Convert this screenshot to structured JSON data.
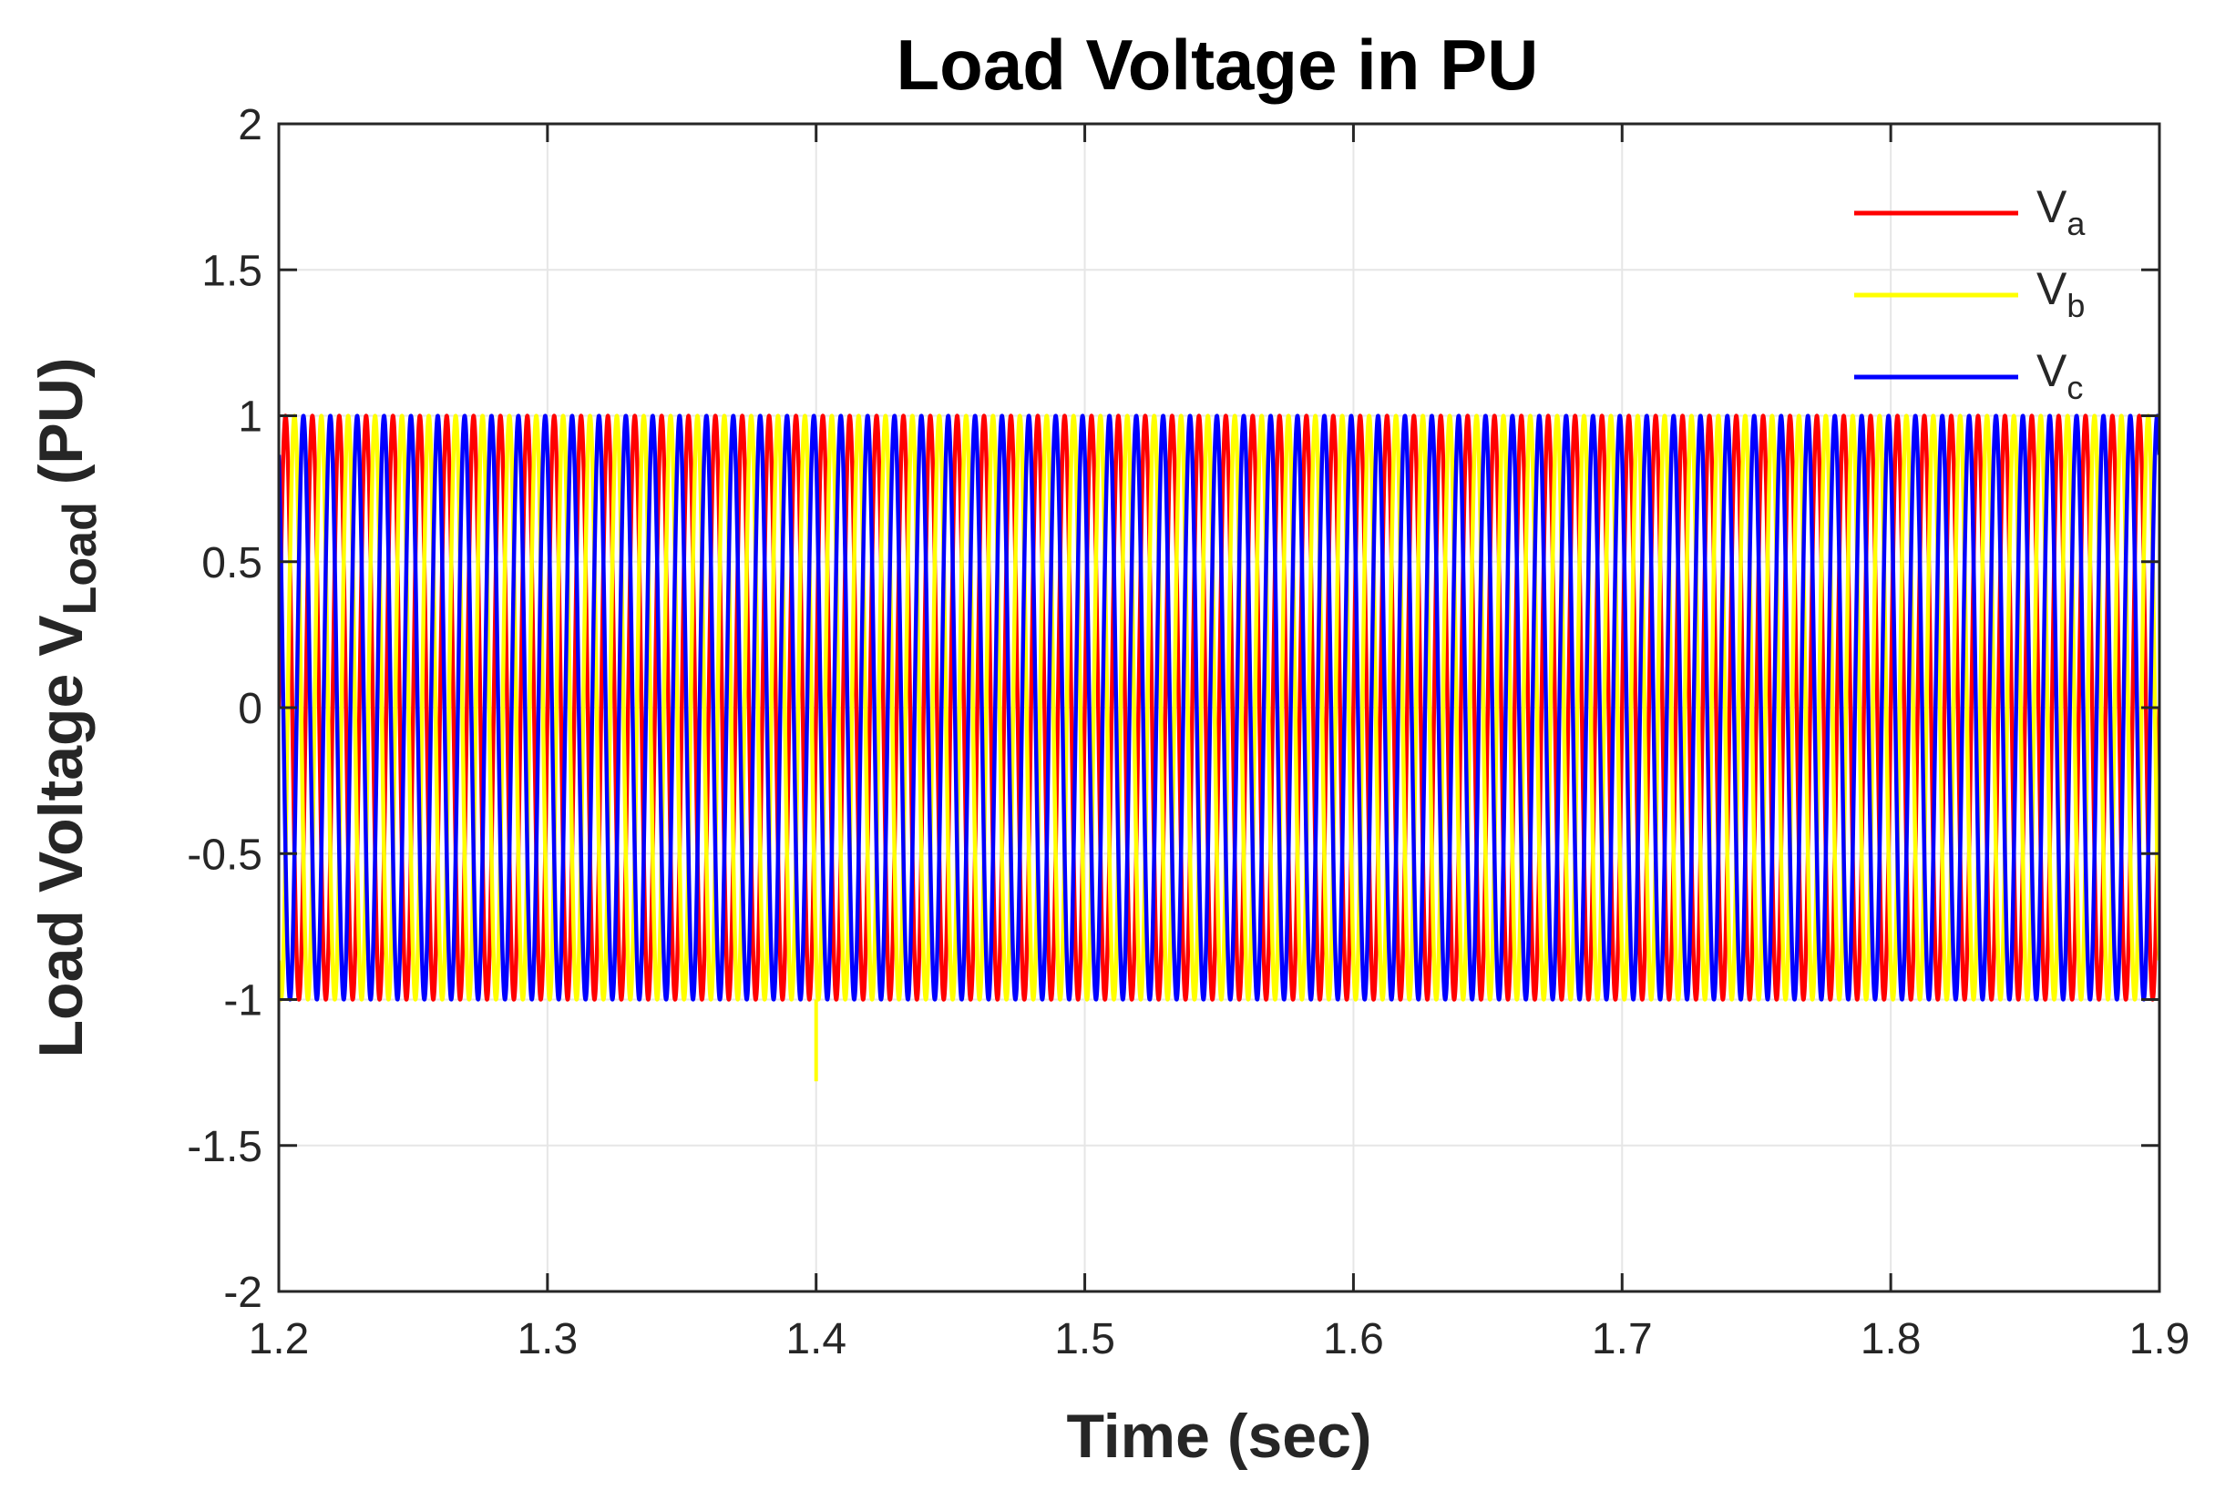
{
  "chart_data": {
    "type": "line",
    "title": "Load Voltage in PU",
    "xlabel": "Time (sec)",
    "ylabel": {
      "prefix": "Load Voltage V",
      "subscript": "Load",
      "suffix": " (PU)"
    },
    "xlim": [
      1.2,
      1.9
    ],
    "ylim": [
      -2,
      2
    ],
    "xticks": [
      "1.2",
      "1.3",
      "1.4",
      "1.5",
      "1.6",
      "1.7",
      "1.8",
      "1.9"
    ],
    "yticks": [
      "2",
      "1.5",
      "1",
      "0.5",
      "0",
      "-0.5",
      "-1",
      "-1.5",
      "-2"
    ],
    "grid": true,
    "legend_position": "top-right",
    "waveform": {
      "frequency_hz": 100,
      "amplitude_pu": 1
    },
    "series": [
      {
        "name": "V",
        "subscript": "a",
        "color": "#ff0000",
        "phase_deg": 0
      },
      {
        "name": "V",
        "subscript": "b",
        "color": "#ffff00",
        "phase_deg": -120
      },
      {
        "name": "V",
        "subscript": "c",
        "color": "#0000ff",
        "phase_deg": 120
      }
    ],
    "annotations": [
      {
        "series": "b",
        "type": "transient_spike",
        "x": 1.4,
        "y": -1.28
      }
    ]
  }
}
